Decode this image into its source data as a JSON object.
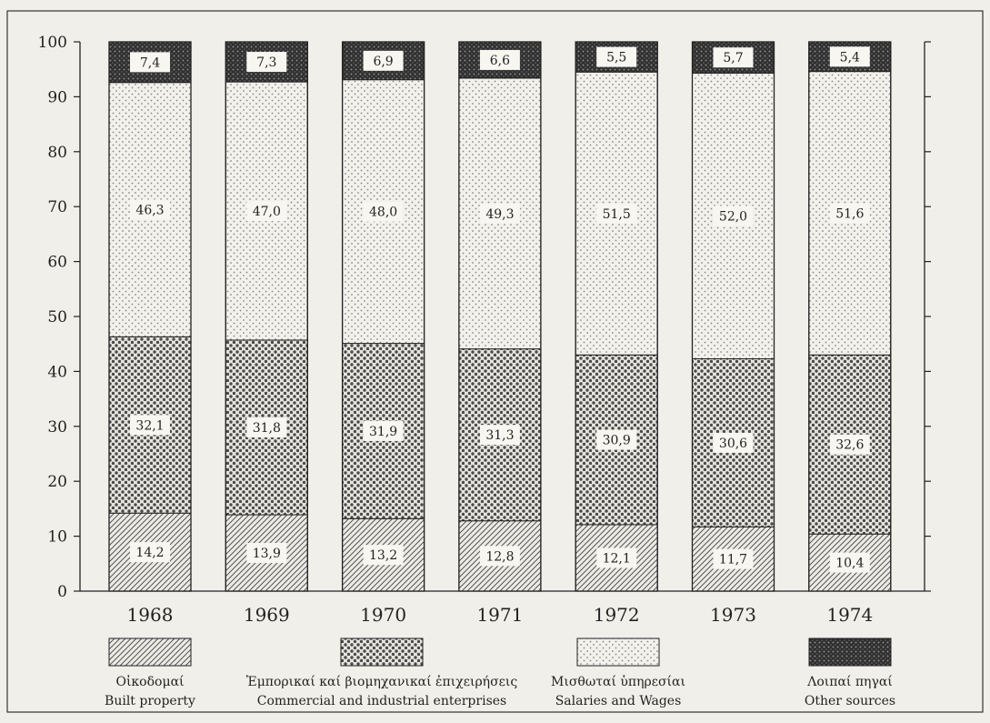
{
  "chart_data": {
    "type": "bar",
    "stacked": true,
    "categories": [
      "1968",
      "1969",
      "1970",
      "1971",
      "1972",
      "1973",
      "1974"
    ],
    "ylim": [
      0,
      100
    ],
    "yticks": [
      0,
      10,
      20,
      30,
      40,
      50,
      60,
      70,
      80,
      90,
      100
    ],
    "grid": false,
    "legend_position": "bottom",
    "series": [
      {
        "name": "Οἰκοδομαί / Built property",
        "legend_gr": "Οἰκοδομαί",
        "legend_en": "Built property",
        "pattern": "hatch",
        "values": [
          14.2,
          13.9,
          13.2,
          12.8,
          12.1,
          11.7,
          10.4
        ],
        "labels": [
          "14,2",
          "13,9",
          "13,2",
          "12,8",
          "12,1",
          "11,7",
          "10,4"
        ]
      },
      {
        "name": "Ἐμπορικαί καί βιομηχανικαί ἐπιχειρήσεις / Commercial and industrial enterprises",
        "legend_gr": "Ἐμπορικαί καί βιομηχανικαί ἐπιχειρήσεις",
        "legend_en": "Commercial and industrial enterprises",
        "pattern": "dense-dots",
        "values": [
          32.1,
          31.8,
          31.9,
          31.3,
          30.9,
          30.6,
          32.6
        ],
        "labels": [
          "32,1",
          "31,8",
          "31,9",
          "31,3",
          "30,9",
          "30,6",
          "32,6"
        ]
      },
      {
        "name": "Μισθωταί ὑπηρεσίαι / Salaries and Wages",
        "legend_gr": "Μισθωταί ὑπηρεσίαι",
        "legend_en": "Salaries and Wages",
        "pattern": "light-dots",
        "values": [
          46.3,
          47.0,
          48.0,
          49.3,
          51.5,
          52.0,
          51.6
        ],
        "labels": [
          "46,3",
          "47,0",
          "48,0",
          "49,3",
          "51,5",
          "52,0",
          "51,6"
        ]
      },
      {
        "name": "Λοιπαί πηγαί / Other sources",
        "legend_gr": "Λοιπαί πηγαί",
        "legend_en": "Other sources",
        "pattern": "dark",
        "values": [
          7.4,
          7.3,
          6.9,
          6.6,
          5.5,
          5.7,
          5.4
        ],
        "labels": [
          "7,4",
          "7,3",
          "6,9",
          "6,6",
          "5,5",
          "5,7",
          "5,4"
        ]
      }
    ]
  }
}
